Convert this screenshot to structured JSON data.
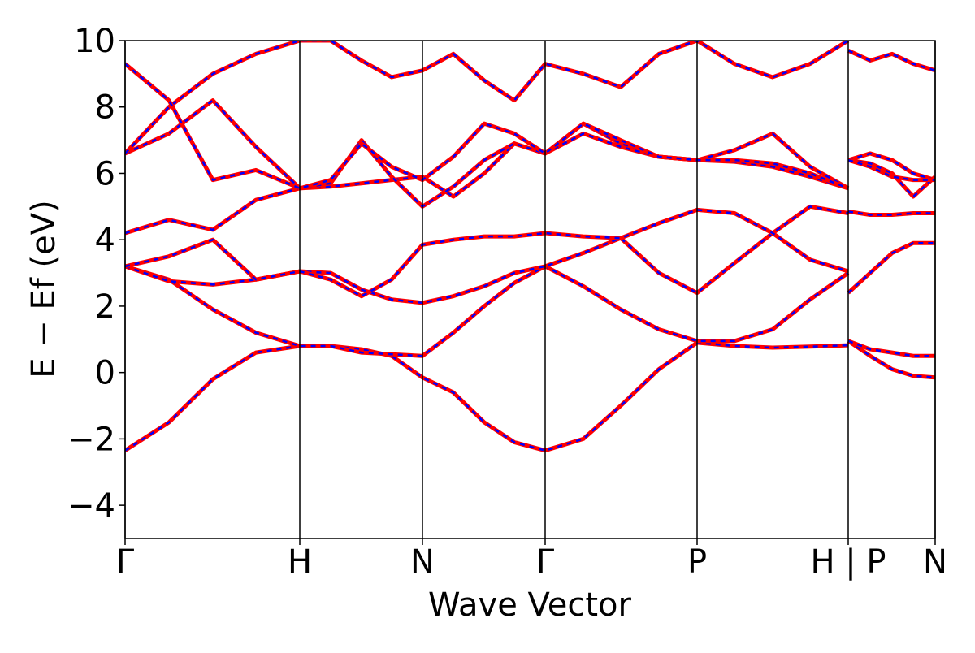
{
  "chart_data": {
    "type": "line",
    "xlabel": "Wave Vector",
    "ylabel": "E − Ef (eV)",
    "xlim": [
      0,
      997
    ],
    "ylim": [
      -5,
      10
    ],
    "xticks": [
      {
        "value": 0,
        "label": "Γ"
      },
      {
        "value": 215,
        "label": "H"
      },
      {
        "value": 366,
        "label": "N"
      },
      {
        "value": 517,
        "label": "Γ"
      },
      {
        "value": 704,
        "label": "P"
      },
      {
        "value": 890,
        "label": "H | P"
      },
      {
        "value": 997,
        "label": "N"
      }
    ],
    "yticks": [
      {
        "value": -4,
        "label": "−4"
      },
      {
        "value": -2,
        "label": "−2"
      },
      0,
      2,
      4,
      6,
      8,
      10
    ],
    "color": "#ff0000",
    "overlay_color": "#0000ff",
    "x": [
      0,
      54,
      108,
      161,
      215,
      253,
      291,
      328,
      366,
      404,
      442,
      479,
      517,
      564,
      610,
      657,
      704,
      750,
      797,
      843,
      890,
      890,
      890,
      917,
      944,
      970,
      997
    ],
    "series": [
      {
        "values": [
          -2.35,
          -1.5,
          -0.2,
          0.6,
          0.8,
          0.8,
          0.7,
          0.5,
          -0.15,
          -0.6,
          -1.5,
          -2.1,
          -2.35,
          -2.0,
          -1.0,
          0.1,
          0.9,
          0.8,
          0.75,
          0.78,
          0.82,
          null,
          0.95,
          0.5,
          0.1,
          -0.1,
          -0.15
        ]
      },
      {
        "values": [
          3.2,
          2.8,
          1.9,
          1.2,
          0.8,
          0.8,
          0.6,
          0.55,
          0.5,
          1.2,
          2.0,
          2.7,
          3.2,
          2.6,
          1.9,
          1.3,
          0.95,
          0.95,
          1.3,
          2.2,
          3.0,
          null,
          0.95,
          0.7,
          0.6,
          0.5,
          0.5
        ]
      },
      {
        "values": [
          3.2,
          2.75,
          2.65,
          2.8,
          3.05,
          3.0,
          2.5,
          2.2,
          2.1,
          2.3,
          2.6,
          3.0,
          3.2,
          3.6,
          4.05,
          3.0,
          2.4,
          3.3,
          4.2,
          5.0,
          4.8,
          null,
          2.4,
          3.0,
          3.6,
          3.9,
          3.9
        ]
      },
      {
        "values": [
          3.2,
          3.5,
          4.0,
          2.8,
          3.05,
          2.8,
          2.3,
          2.8,
          3.85,
          4.0,
          4.1,
          4.1,
          4.2,
          4.1,
          4.05,
          4.5,
          4.9,
          4.8,
          4.2,
          3.4,
          3.05,
          null,
          4.85,
          4.75,
          4.75,
          4.8,
          4.8
        ]
      },
      {
        "values": [
          4.2,
          4.6,
          4.3,
          5.2,
          5.55,
          5.6,
          5.7,
          5.8,
          5.9,
          5.3,
          6.0,
          6.9,
          6.6,
          7.5,
          6.9,
          6.5,
          6.4,
          6.7,
          7.2,
          6.2,
          5.55,
          null,
          6.4,
          6.6,
          6.4,
          6.0,
          5.8
        ]
      },
      {
        "values": [
          6.6,
          7.2,
          8.2,
          6.8,
          5.55,
          5.7,
          7.0,
          5.9,
          5.0,
          5.6,
          6.4,
          6.9,
          6.6,
          7.2,
          6.8,
          6.5,
          6.4,
          6.35,
          6.2,
          5.9,
          5.55,
          null,
          6.4,
          6.3,
          6.0,
          5.3,
          5.9
        ]
      },
      {
        "values": [
          6.6,
          8.0,
          9.0,
          9.6,
          10.0,
          10.0,
          9.4,
          8.9,
          9.1,
          9.6,
          8.8,
          8.2,
          9.3,
          9.0,
          8.6,
          9.6,
          10.0,
          9.3,
          8.9,
          9.3,
          10.0,
          null,
          9.7,
          9.4,
          9.6,
          9.3,
          9.1
        ]
      },
      {
        "values": [
          9.3,
          8.2,
          5.8,
          6.1,
          5.55,
          5.8,
          6.9,
          6.2,
          5.8,
          6.5,
          7.5,
          7.2,
          6.6,
          7.5,
          7.0,
          6.5,
          6.4,
          6.4,
          6.3,
          6.0,
          5.55,
          null,
          6.4,
          6.2,
          5.9,
          5.8,
          5.8
        ]
      }
    ]
  }
}
